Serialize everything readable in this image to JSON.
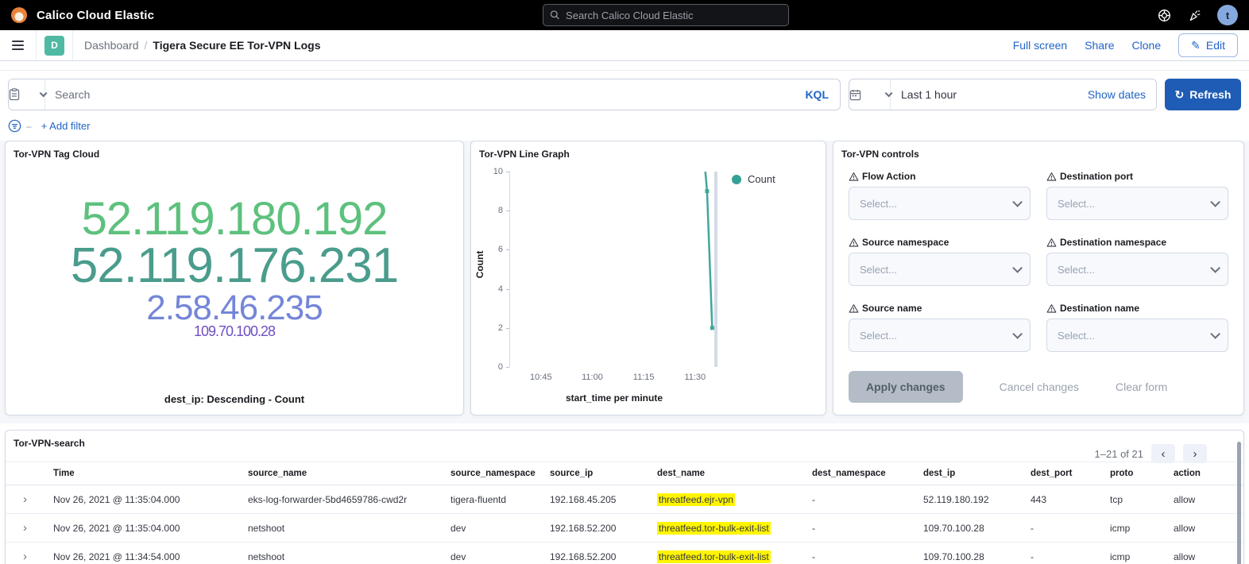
{
  "topbar": {
    "title": "Calico Cloud Elastic",
    "search_placeholder": "Search Calico Cloud Elastic",
    "avatar_initial": "t"
  },
  "chrome": {
    "breadcrumb_root": "Dashboard",
    "breadcrumb_sep": "/",
    "title": "Tigera Secure EE Tor-VPN Logs",
    "full_screen": "Full screen",
    "share": "Share",
    "clone": "Clone",
    "edit": "Edit"
  },
  "querybar": {
    "search_placeholder": "Search",
    "kql": "KQL",
    "time_range": "Last 1 hour",
    "show_dates": "Show dates",
    "refresh": "Refresh",
    "add_filter": "+ Add filter"
  },
  "panels": {
    "tag_cloud": {
      "title": "Tor-VPN Tag Cloud",
      "caption": "dest_ip: Descending - Count",
      "items": [
        {
          "text": "52.119.180.192",
          "color": "#5dc17e",
          "size": 58
        },
        {
          "text": "52.119.176.231",
          "color": "#4a9c8c",
          "size": 62
        },
        {
          "text": "2.58.46.235",
          "color": "#7486d8",
          "size": 44
        },
        {
          "text": "109.70.100.28",
          "color": "#6e4fc3",
          "size": 18
        }
      ]
    },
    "line_graph": {
      "title": "Tor-VPN Line Graph"
    },
    "controls": {
      "title": "Tor-VPN controls",
      "fields": [
        {
          "label": "Flow Action",
          "placeholder": "Select..."
        },
        {
          "label": "Destination port",
          "placeholder": "Select..."
        },
        {
          "label": "Source namespace",
          "placeholder": "Select..."
        },
        {
          "label": "Destination namespace",
          "placeholder": "Select..."
        },
        {
          "label": "Source name",
          "placeholder": "Select..."
        },
        {
          "label": "Destination name",
          "placeholder": "Select..."
        }
      ],
      "apply": "Apply changes",
      "cancel": "Cancel changes",
      "clear": "Clear form"
    }
  },
  "chart_data": {
    "type": "line",
    "title": "Tor-VPN Line Graph",
    "xlabel": "start_time per minute",
    "ylabel": "Count",
    "ylim": [
      0,
      10
    ],
    "yticks": [
      0,
      2,
      4,
      6,
      8,
      10
    ],
    "xticks": [
      "10:45",
      "11:00",
      "11:15",
      "11:30"
    ],
    "x_domain": [
      "10:36",
      "11:37"
    ],
    "time_marker": "11:35:30",
    "legend_position": "right",
    "grid": false,
    "series": [
      {
        "name": "Count",
        "color": "#3fa79b",
        "points": [
          {
            "t": "11:33",
            "y": 10
          },
          {
            "t": "11:33:30",
            "y": 9
          },
          {
            "t": "11:35",
            "y": 2
          }
        ]
      }
    ]
  },
  "table": {
    "title": "Tor-VPN-search",
    "pagination_label": "1–21 of 21",
    "columns": [
      "Time",
      "source_name",
      "source_namespace",
      "source_ip",
      "dest_name",
      "dest_namespace",
      "dest_ip",
      "dest_port",
      "proto",
      "action"
    ],
    "rows": [
      {
        "time": "Nov 26, 2021 @ 11:35:04.000",
        "source_name": "eks-log-forwarder-5bd4659786-cwd2r",
        "source_namespace": "tigera-fluentd",
        "source_ip": "192.168.45.205",
        "dest_name": "threatfeed.ejr-vpn",
        "dest_namespace": "-",
        "dest_ip": "52.119.180.192",
        "dest_port": "443",
        "proto": "tcp",
        "action": "allow"
      },
      {
        "time": "Nov 26, 2021 @ 11:35:04.000",
        "source_name": "netshoot",
        "source_namespace": "dev",
        "source_ip": "192.168.52.200",
        "dest_name": "threatfeed.tor-bulk-exit-list",
        "dest_namespace": "-",
        "dest_ip": "109.70.100.28",
        "dest_port": "-",
        "proto": "icmp",
        "action": "allow"
      },
      {
        "time": "Nov 26, 2021 @ 11:34:54.000",
        "source_name": "netshoot",
        "source_namespace": "dev",
        "source_ip": "192.168.52.200",
        "dest_name": "threatfeed.tor-bulk-exit-list",
        "dest_namespace": "-",
        "dest_ip": "109.70.100.28",
        "dest_port": "-",
        "proto": "icmp",
        "action": "allow"
      }
    ]
  }
}
